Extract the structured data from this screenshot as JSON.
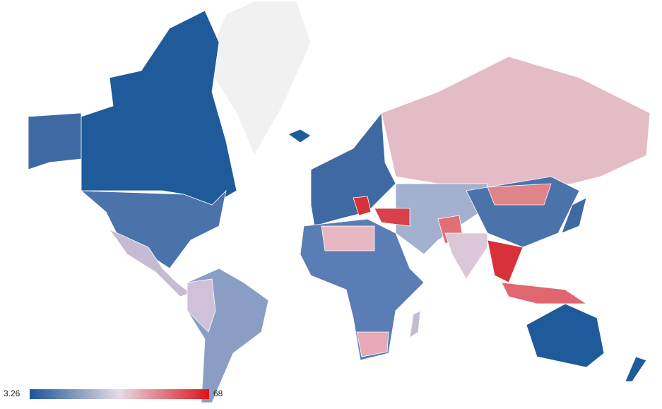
{
  "legend": {
    "min": 3.26,
    "max": 68,
    "colors": [
      "#1b5597",
      "#e6dbe6",
      "#d9141c"
    ]
  }
}
